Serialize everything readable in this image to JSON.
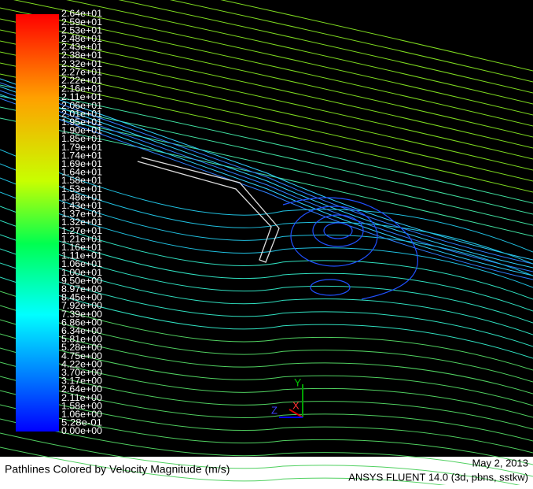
{
  "colorbar": {
    "labels": [
      "2.64e+01",
      "2.59e+01",
      "2.53e+01",
      "2.48e+01",
      "2.43e+01",
      "2.38e+01",
      "2.32e+01",
      "2.27e+01",
      "2.22e+01",
      "2.16e+01",
      "2.11e+01",
      "2.06e+01",
      "2.01e+01",
      "1.95e+01",
      "1.90e+01",
      "1.85e+01",
      "1.79e+01",
      "1.74e+01",
      "1.69e+01",
      "1.64e+01",
      "1.58e+01",
      "1.53e+01",
      "1.48e+01",
      "1.43e+01",
      "1.37e+01",
      "1.32e+01",
      "1.27e+01",
      "1.21e+01",
      "1.16e+01",
      "1.11e+01",
      "1.06e+01",
      "1.00e+01",
      "9.50e+00",
      "8.97e+00",
      "8.45e+00",
      "7.92e+00",
      "7.39e+00",
      "6.86e+00",
      "6.34e+00",
      "5.81e+00",
      "5.28e+00",
      "4.75e+00",
      "4.22e+00",
      "3.70e+00",
      "3.17e+00",
      "2.64e+00",
      "2.11e+00",
      "1.58e+00",
      "1.06e+00",
      "5.28e-01",
      "0.00e+00"
    ]
  },
  "axes": {
    "x": "X",
    "y": "Y",
    "z": "Z"
  },
  "footer": {
    "caption": "Pathlines Colored by Velocity Magnitude (m/s)",
    "date": "May 2, 2013",
    "software": "ANSYS FLUENT 14.0 (3d, pbns, sstkw)"
  }
}
